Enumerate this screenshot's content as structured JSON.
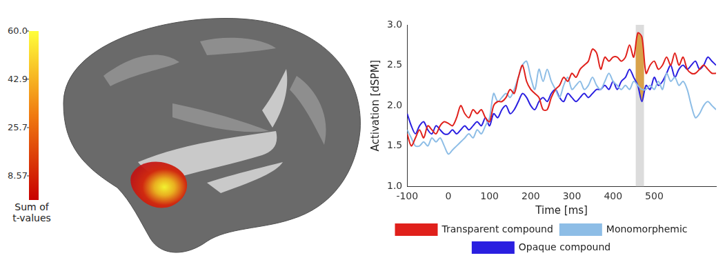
{
  "chart_data": [
    {
      "type": "brain_map",
      "colorbar": {
        "label": "Sum of t-values",
        "range": [
          0,
          60
        ],
        "ticks": [
          {
            "value": 60,
            "label": "60.0"
          },
          42.9,
          25.7,
          8.57
        ]
      }
    },
    {
      "type": "line",
      "x_label": "Time [ms]",
      "y_label": "Activation [dSPM]",
      "xlim": [
        -100,
        650
      ],
      "xticks": [
        -100,
        0,
        100,
        200,
        300,
        400,
        500
      ],
      "ylim": [
        1,
        3
      ],
      "yticks": [
        {
          "value": 1,
          "label": "1.0"
        },
        1.5,
        {
          "value": 2,
          "label": "2.0"
        },
        2.5,
        {
          "value": 3,
          "label": "3.0"
        }
      ],
      "grid": false,
      "legend": "bottom",
      "significant_window": [
        455,
        475
      ],
      "x": [
        -100,
        -90,
        -80,
        -70,
        -60,
        -50,
        -40,
        -30,
        -20,
        -10,
        0,
        10,
        20,
        30,
        40,
        50,
        60,
        70,
        80,
        90,
        100,
        110,
        120,
        130,
        140,
        150,
        160,
        170,
        180,
        190,
        200,
        210,
        220,
        230,
        240,
        250,
        260,
        270,
        280,
        290,
        300,
        310,
        320,
        330,
        340,
        350,
        360,
        370,
        380,
        390,
        400,
        410,
        420,
        430,
        440,
        450,
        460,
        470,
        480,
        490,
        500,
        510,
        520,
        530,
        540,
        550,
        560,
        570,
        580,
        590,
        600,
        610,
        620,
        630,
        640,
        650
      ],
      "series": [
        {
          "name": "Transparent compound",
          "color": "#e0201b",
          "values": [
            1.65,
            1.5,
            1.6,
            1.7,
            1.6,
            1.75,
            1.7,
            1.65,
            1.75,
            1.8,
            1.78,
            1.75,
            1.85,
            2.0,
            1.9,
            1.85,
            1.95,
            1.9,
            1.95,
            1.85,
            1.8,
            2.0,
            2.05,
            2.05,
            2.1,
            2.2,
            2.15,
            2.35,
            2.5,
            2.3,
            2.2,
            2.15,
            2.1,
            1.95,
            1.95,
            2.1,
            2.2,
            2.25,
            2.35,
            2.3,
            2.4,
            2.35,
            2.45,
            2.5,
            2.55,
            2.7,
            2.65,
            2.45,
            2.6,
            2.55,
            2.6,
            2.6,
            2.55,
            2.6,
            2.75,
            2.6,
            2.9,
            2.85,
            2.4,
            2.5,
            2.55,
            2.45,
            2.5,
            2.6,
            2.5,
            2.65,
            2.5,
            2.6,
            2.45,
            2.4,
            2.4,
            2.45,
            2.5,
            2.45,
            2.4,
            2.4
          ]
        },
        {
          "name": "Monomorphemic",
          "color": "#8dbde6",
          "values": [
            1.7,
            1.6,
            1.5,
            1.5,
            1.55,
            1.5,
            1.6,
            1.55,
            1.6,
            1.5,
            1.4,
            1.45,
            1.5,
            1.55,
            1.6,
            1.65,
            1.6,
            1.7,
            1.65,
            1.75,
            1.85,
            2.15,
            2.05,
            2.1,
            2.15,
            2.1,
            2.2,
            2.35,
            2.5,
            2.55,
            2.35,
            2.2,
            2.45,
            2.3,
            2.45,
            2.3,
            2.2,
            2.1,
            2.25,
            2.35,
            2.2,
            2.25,
            2.3,
            2.2,
            2.25,
            2.35,
            2.25,
            2.2,
            2.3,
            2.4,
            2.3,
            2.25,
            2.2,
            2.25,
            2.2,
            2.3,
            2.25,
            2.2,
            2.2,
            2.25,
            2.2,
            2.3,
            2.2,
            2.4,
            2.3,
            2.35,
            2.25,
            2.3,
            2.2,
            2.0,
            1.85,
            1.9,
            2.0,
            2.05,
            2.0,
            1.95
          ]
        },
        {
          "name": "Opaque compound",
          "color": "#2a1fe0",
          "values": [
            1.9,
            1.75,
            1.65,
            1.75,
            1.8,
            1.7,
            1.65,
            1.75,
            1.7,
            1.65,
            1.65,
            1.7,
            1.65,
            1.7,
            1.75,
            1.7,
            1.75,
            1.8,
            1.75,
            1.85,
            1.75,
            1.9,
            1.85,
            1.95,
            2.0,
            1.9,
            1.95,
            2.05,
            2.15,
            2.1,
            2.0,
            1.95,
            2.05,
            2.1,
            2.05,
            2.15,
            2.2,
            2.1,
            2.05,
            2.15,
            2.1,
            2.05,
            2.1,
            2.15,
            2.1,
            2.15,
            2.2,
            2.2,
            2.25,
            2.2,
            2.3,
            2.2,
            2.3,
            2.35,
            2.45,
            2.35,
            2.25,
            2.05,
            2.25,
            2.2,
            2.35,
            2.25,
            2.3,
            2.4,
            2.5,
            2.35,
            2.45,
            2.5,
            2.45,
            2.5,
            2.55,
            2.45,
            2.5,
            2.6,
            2.55,
            2.5
          ]
        }
      ]
    }
  ]
}
